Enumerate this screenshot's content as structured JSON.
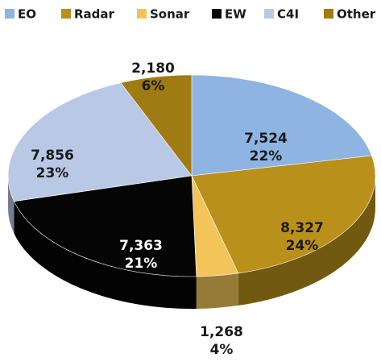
{
  "chart_data": {
    "type": "pie",
    "categories": [
      "EO",
      "Radar",
      "Sonar",
      "EW",
      "C4I",
      "Other"
    ],
    "values": [
      7524,
      8327,
      1268,
      7363,
      7856,
      2180
    ],
    "value_labels": [
      "7,524",
      "8,327",
      "1,268",
      "7,363",
      "7,856",
      "2,180"
    ],
    "percentages": [
      22,
      24,
      4,
      21,
      23,
      6
    ],
    "percentage_labels": [
      "22%",
      "24%",
      "4%",
      "21%",
      "23%",
      "6%"
    ],
    "colors": [
      "#8db4e2",
      "#b8901a",
      "#f2c45a",
      "#050505",
      "#b9c9e5",
      "#a07a12"
    ],
    "legend": "top"
  }
}
